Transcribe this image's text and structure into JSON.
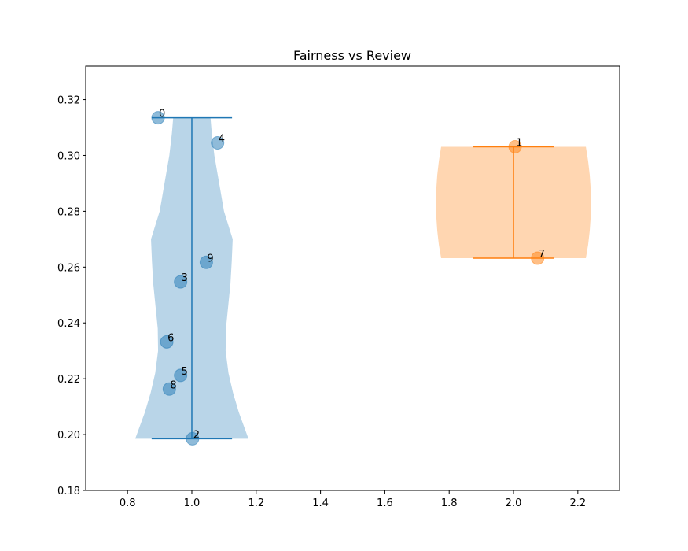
{
  "chart_data": {
    "type": "violin",
    "title": "Fairness vs Review",
    "xlabel": "",
    "ylabel": "",
    "xlim": [
      0.67,
      2.33
    ],
    "ylim": [
      0.18,
      0.332
    ],
    "xticks": [
      "0.8",
      "1.0",
      "1.2",
      "1.4",
      "1.6",
      "1.8",
      "2.0",
      "2.2"
    ],
    "xtick_values": [
      0.8,
      1.0,
      1.2,
      1.4,
      1.6,
      1.8,
      2.0,
      2.2
    ],
    "yticks": [
      "0.18",
      "0.20",
      "0.22",
      "0.24",
      "0.26",
      "0.28",
      "0.30",
      "0.32"
    ],
    "ytick_values": [
      0.18,
      0.2,
      0.22,
      0.24,
      0.26,
      0.28,
      0.3,
      0.32
    ],
    "grid": false,
    "violins": [
      {
        "position": 1,
        "color": "#1f77b4",
        "fill": "#b9d5e8",
        "min": 0.1985,
        "max": 0.3135,
        "cap_half_width": 0.125,
        "profile": [
          [
            0.1985,
            0.176
          ],
          [
            0.202,
            0.165
          ],
          [
            0.208,
            0.146
          ],
          [
            0.215,
            0.128
          ],
          [
            0.222,
            0.114
          ],
          [
            0.23,
            0.105
          ],
          [
            0.238,
            0.106
          ],
          [
            0.246,
            0.113
          ],
          [
            0.254,
            0.12
          ],
          [
            0.262,
            0.124
          ],
          [
            0.27,
            0.127
          ],
          [
            0.28,
            0.1
          ],
          [
            0.29,
            0.085
          ],
          [
            0.3,
            0.07
          ],
          [
            0.308,
            0.062
          ],
          [
            0.3135,
            0.058
          ]
        ]
      },
      {
        "position": 2,
        "color": "#ff7f0e",
        "fill": "#ffd6b1",
        "min": 0.2632,
        "max": 0.3031,
        "cap_half_width": 0.125,
        "profile": [
          [
            0.2632,
            0.225
          ],
          [
            0.268,
            0.232
          ],
          [
            0.273,
            0.237
          ],
          [
            0.278,
            0.24
          ],
          [
            0.283,
            0.241
          ],
          [
            0.288,
            0.24
          ],
          [
            0.293,
            0.237
          ],
          [
            0.298,
            0.232
          ],
          [
            0.3031,
            0.225
          ]
        ]
      }
    ],
    "points": [
      {
        "label": "0",
        "x": 0.895,
        "y": 0.3135,
        "group": 0
      },
      {
        "label": "4",
        "x": 1.08,
        "y": 0.3045,
        "group": 0
      },
      {
        "label": "9",
        "x": 1.045,
        "y": 0.2617,
        "group": 0
      },
      {
        "label": "3",
        "x": 0.965,
        "y": 0.2547,
        "group": 0
      },
      {
        "label": "6",
        "x": 0.922,
        "y": 0.2332,
        "group": 0
      },
      {
        "label": "5",
        "x": 0.965,
        "y": 0.2212,
        "group": 0
      },
      {
        "label": "8",
        "x": 0.93,
        "y": 0.2163,
        "group": 0
      },
      {
        "label": "2",
        "x": 1.002,
        "y": 0.1985,
        "group": 0
      },
      {
        "label": "1",
        "x": 2.005,
        "y": 0.3031,
        "group": 1
      },
      {
        "label": "7",
        "x": 2.075,
        "y": 0.2632,
        "group": 1
      }
    ],
    "point_colors": [
      "#1f77b4",
      "#ff7f0e"
    ]
  }
}
